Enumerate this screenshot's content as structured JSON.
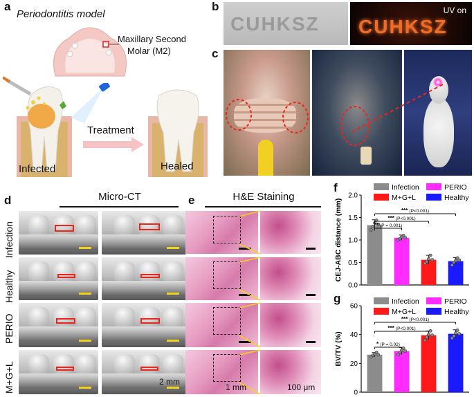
{
  "panel_labels": {
    "a": "a",
    "b": "b",
    "c": "c",
    "d": "d",
    "e": "e",
    "f": "f",
    "g": "g"
  },
  "panel_a": {
    "title": "Periodontitis model",
    "molar_label_line1": "Maxillary Second",
    "molar_label_line2": "Molar (M2)",
    "treatment": "Treatment",
    "infected": "Infected",
    "healed": "Healed"
  },
  "panel_b": {
    "text": "CUHKSZ",
    "uv_label": "UV on"
  },
  "panel_d": {
    "title": "Micro-CT",
    "rows": [
      "Infection",
      "Healthy",
      "PERIO",
      "M+G+L"
    ],
    "scale": "2 mm"
  },
  "panel_e": {
    "title": "H&E Staining",
    "scale_left": "1 mm",
    "scale_right": "100 μm"
  },
  "colors": {
    "gray": "#8c8c8c",
    "magenta": "#ff2bff",
    "red": "#ff1a1a",
    "blue": "#1a1aff",
    "dashed_red": "#e8261b",
    "zoom_yellow": "#f2d21c"
  },
  "chart_data": [
    {
      "type": "bar",
      "panel": "f",
      "ylabel": "CEJ-ABC distance (mm)",
      "ylim": [
        0,
        2.0
      ],
      "yticks": [
        "0.0",
        "0.5",
        "1.0",
        "1.5",
        "2.0"
      ],
      "categories": [
        "Infection",
        "PERIO",
        "M+G+L",
        "Healthy"
      ],
      "values": [
        1.33,
        1.05,
        0.56,
        0.53
      ],
      "errors": [
        0.12,
        0.06,
        0.1,
        0.08
      ],
      "points": [
        [
          1.22,
          1.3,
          1.38,
          1.44,
          1.35
        ],
        [
          1.0,
          1.03,
          1.07,
          1.1,
          1.05
        ],
        [
          0.48,
          0.52,
          0.58,
          0.66,
          0.56
        ],
        [
          0.44,
          0.5,
          0.54,
          0.6,
          0.55
        ]
      ],
      "legend": [
        "Infection",
        "PERIO",
        "M+G+L",
        "Healthy"
      ],
      "sig": [
        {
          "stars": "**",
          "p": "(P = 0.001)",
          "from": 0,
          "to": 1
        },
        {
          "stars": "***",
          "p": "(P<0.001)",
          "from": 0,
          "to": 2
        },
        {
          "stars": "***",
          "p": "(P<0.001)",
          "from": 0,
          "to": 3
        }
      ]
    },
    {
      "type": "bar",
      "panel": "g",
      "ylabel": "BV/TV (%)",
      "ylim": [
        0,
        60
      ],
      "yticks": [
        "0",
        "20",
        "40",
        "60"
      ],
      "categories": [
        "Infection",
        "PERIO",
        "M+G+L",
        "Healthy"
      ],
      "values": [
        26,
        28.5,
        39.5,
        40.5
      ],
      "errors": [
        1.5,
        2.5,
        3,
        2.8
      ],
      "points": [
        [
          24.5,
          25.5,
          26.5,
          27.5,
          26
        ],
        [
          26,
          27.5,
          29,
          30.5,
          28.5
        ],
        [
          36,
          38,
          40,
          42.5,
          39.5
        ],
        [
          37.5,
          39,
          41,
          43,
          40.5
        ]
      ],
      "legend": [
        "Infection",
        "PERIO",
        "M+G+L",
        "Healthy"
      ],
      "sig": [
        {
          "stars": "*",
          "p": "(P = 0.02)",
          "from": 0,
          "to": 1
        },
        {
          "stars": "***",
          "p": "(P<0.001)",
          "from": 0,
          "to": 2
        },
        {
          "stars": "***",
          "p": "(P<0.001)",
          "from": 0,
          "to": 3
        }
      ]
    }
  ]
}
